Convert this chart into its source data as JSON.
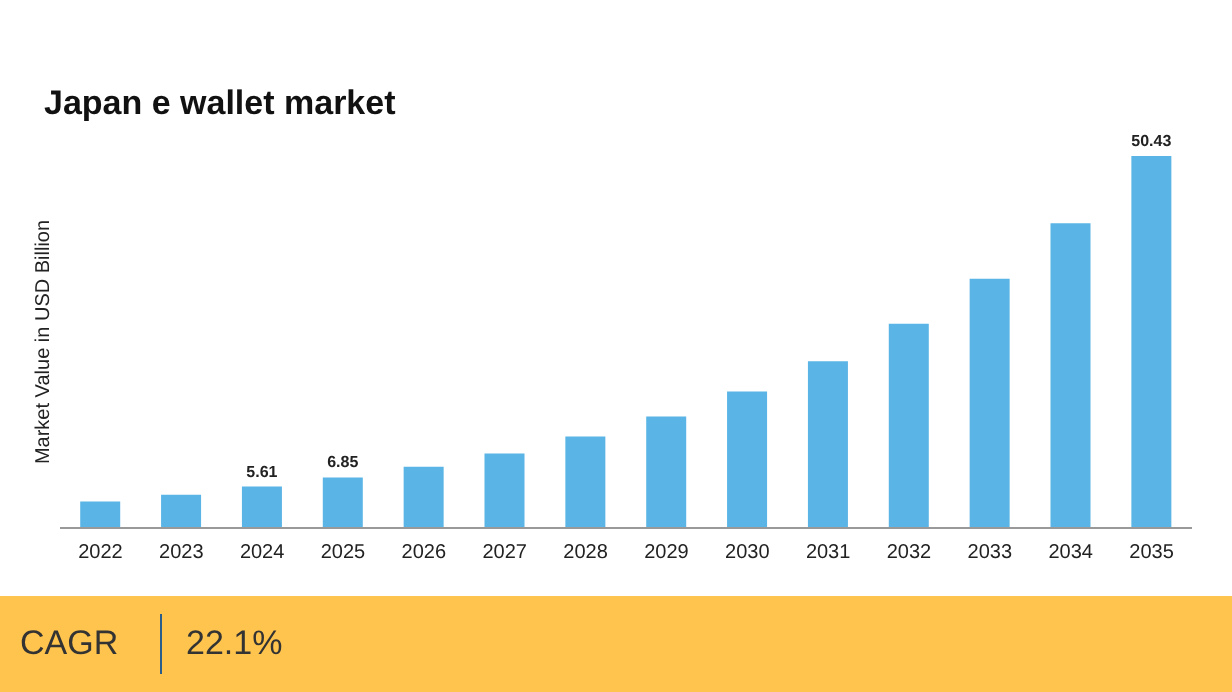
{
  "chart_data": {
    "type": "bar",
    "title": "Japan e wallet market",
    "ylabel": "Market Value in USD Billion",
    "categories": [
      "2022",
      "2023",
      "2024",
      "2025",
      "2026",
      "2027",
      "2028",
      "2029",
      "2030",
      "2031",
      "2032",
      "2033",
      "2034",
      "2035"
    ],
    "values": [
      3.6,
      4.5,
      5.61,
      6.85,
      8.3,
      10.1,
      12.4,
      15.1,
      18.5,
      22.6,
      27.7,
      33.8,
      41.3,
      50.43
    ],
    "value_labels": [
      null,
      null,
      "5.61",
      "6.85",
      null,
      null,
      null,
      null,
      null,
      null,
      null,
      null,
      null,
      "50.43"
    ],
    "color": "#5ab4e5",
    "grid": false,
    "legend": false,
    "annotations": [
      "CAGR",
      "22.1%"
    ]
  }
}
